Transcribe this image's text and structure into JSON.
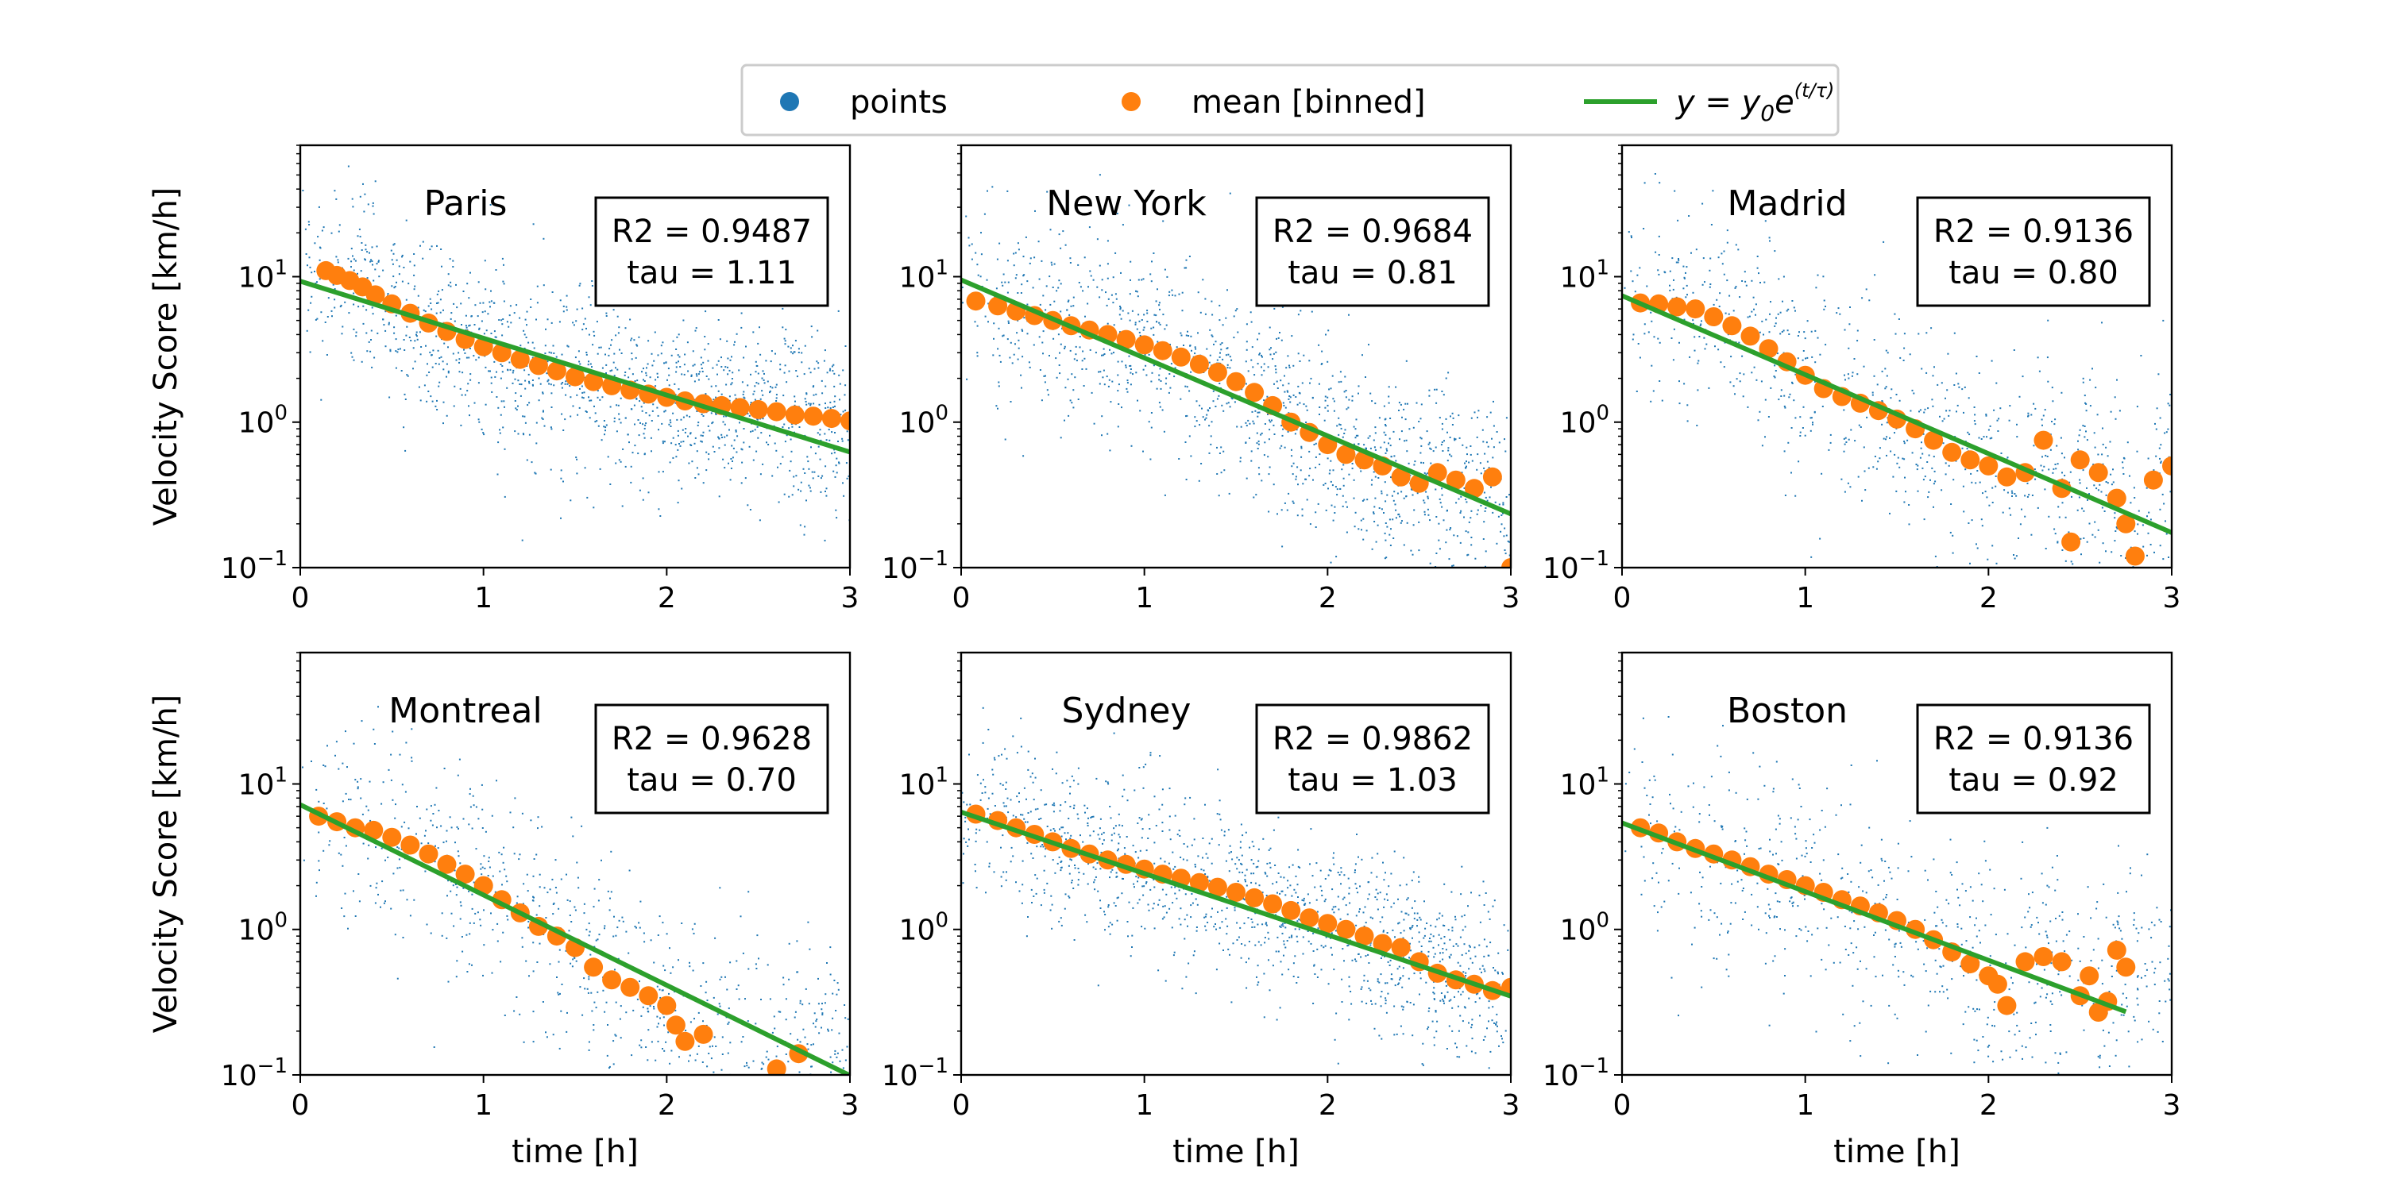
{
  "legend": {
    "placement": "top-center",
    "entries": [
      {
        "label": "points",
        "color": "#1f77b4",
        "marker": "dot"
      },
      {
        "label": "mean [binned]",
        "color": "#ff7f0e",
        "marker": "dot"
      },
      {
        "label_prefix": "y = y",
        "label_sub": "0",
        "label_e": "e",
        "label_sup": "(t/τ)",
        "color": "#2ca02c",
        "marker": "line"
      }
    ]
  },
  "colors": {
    "points": "#1f77b4",
    "mean": "#ff7f0e",
    "fit": "#2ca02c"
  },
  "chart_data": [
    {
      "type": "scatter",
      "title": "Paris",
      "row": 0,
      "col": 0,
      "xlabel": "",
      "ylabel": "Velocity Score [km/h]",
      "xlim": [
        0,
        3
      ],
      "ylim": [
        0.1,
        80
      ],
      "yscale": "log",
      "xticks": [
        "0",
        "1",
        "2",
        "3"
      ],
      "yticks": [
        {
          "base": "10",
          "exp": "1"
        },
        {
          "base": "10",
          "exp": "0"
        },
        {
          "base": "10",
          "exp": "−1"
        }
      ],
      "annotation": {
        "r2": "R2 = 0.9487",
        "tau": "tau = 1.11"
      },
      "fit": {
        "y0": 9.3,
        "tau": 1.11,
        "x_end": 3
      },
      "mean_binned": {
        "x": [
          0.14,
          0.2,
          0.27,
          0.34,
          0.41,
          0.5,
          0.6,
          0.7,
          0.8,
          0.9,
          1.0,
          1.1,
          1.2,
          1.3,
          1.4,
          1.5,
          1.6,
          1.7,
          1.8,
          1.9,
          2.0,
          2.1,
          2.2,
          2.3,
          2.4,
          2.5,
          2.6,
          2.7,
          2.8,
          2.9,
          3.0
        ],
        "y": [
          11,
          10.2,
          9.4,
          8.5,
          7.5,
          6.5,
          5.6,
          4.8,
          4.2,
          3.7,
          3.3,
          3.0,
          2.7,
          2.45,
          2.25,
          2.05,
          1.9,
          1.78,
          1.66,
          1.56,
          1.48,
          1.4,
          1.34,
          1.3,
          1.26,
          1.22,
          1.18,
          1.12,
          1.1,
          1.06,
          1.02
        ]
      },
      "scatter_spread": 0.32,
      "scatter_count": 1400
    },
    {
      "type": "scatter",
      "title": "New York",
      "row": 0,
      "col": 1,
      "xlabel": "",
      "ylabel": "",
      "xlim": [
        0,
        3
      ],
      "ylim": [
        0.1,
        80
      ],
      "yscale": "log",
      "xticks": [
        "0",
        "1",
        "2",
        "3"
      ],
      "yticks": [
        {
          "base": "10",
          "exp": "1"
        },
        {
          "base": "10",
          "exp": "0"
        },
        {
          "base": "10",
          "exp": "−1"
        }
      ],
      "annotation": {
        "r2": "R2 = 0.9684",
        "tau": "tau = 0.81"
      },
      "fit": {
        "y0": 9.5,
        "tau": 0.81,
        "x_end": 3
      },
      "mean_binned": {
        "x": [
          0.08,
          0.2,
          0.3,
          0.4,
          0.5,
          0.6,
          0.7,
          0.8,
          0.9,
          1.0,
          1.1,
          1.2,
          1.3,
          1.4,
          1.5,
          1.6,
          1.7,
          1.8,
          1.9,
          2.0,
          2.1,
          2.2,
          2.3,
          2.4,
          2.5,
          2.6,
          2.7,
          2.8,
          2.9,
          3.0
        ],
        "y": [
          6.8,
          6.3,
          5.8,
          5.4,
          5.0,
          4.6,
          4.3,
          4.0,
          3.7,
          3.4,
          3.1,
          2.8,
          2.5,
          2.2,
          1.9,
          1.6,
          1.3,
          1.0,
          0.85,
          0.7,
          0.6,
          0.55,
          0.5,
          0.42,
          0.38,
          0.45,
          0.4,
          0.35,
          0.42,
          0.1
        ]
      },
      "scatter_spread": 0.34,
      "scatter_count": 1300
    },
    {
      "type": "scatter",
      "title": "Madrid",
      "row": 0,
      "col": 2,
      "xlabel": "",
      "ylabel": "",
      "xlim": [
        0,
        3
      ],
      "ylim": [
        0.1,
        80
      ],
      "yscale": "log",
      "xticks": [
        "0",
        "1",
        "2",
        "3"
      ],
      "yticks": [
        {
          "base": "10",
          "exp": "1"
        },
        {
          "base": "10",
          "exp": "0"
        },
        {
          "base": "10",
          "exp": "−1"
        }
      ],
      "annotation": {
        "r2": "R2 = 0.9136",
        "tau": "tau = 0.80"
      },
      "fit": {
        "y0": 7.4,
        "tau": 0.8,
        "x_end": 3
      },
      "mean_binned": {
        "x": [
          0.1,
          0.2,
          0.3,
          0.4,
          0.5,
          0.6,
          0.7,
          0.8,
          0.9,
          1.0,
          1.1,
          1.2,
          1.3,
          1.4,
          1.5,
          1.6,
          1.7,
          1.8,
          1.9,
          2.0,
          2.1,
          2.2,
          2.3,
          2.4,
          2.45,
          2.5,
          2.6,
          2.7,
          2.75,
          2.8,
          2.9,
          3.0
        ],
        "y": [
          6.6,
          6.5,
          6.2,
          6.0,
          5.3,
          4.6,
          3.9,
          3.2,
          2.6,
          2.1,
          1.7,
          1.5,
          1.35,
          1.2,
          1.05,
          0.9,
          0.75,
          0.62,
          0.55,
          0.5,
          0.42,
          0.45,
          0.75,
          0.35,
          0.15,
          0.55,
          0.45,
          0.3,
          0.2,
          0.12,
          0.4,
          0.5
        ]
      },
      "scatter_spread": 0.38,
      "scatter_count": 900
    },
    {
      "type": "scatter",
      "title": "Montreal",
      "row": 1,
      "col": 0,
      "xlabel": "time [h]",
      "ylabel": "Velocity Score [km/h]",
      "xlim": [
        0,
        3
      ],
      "ylim": [
        0.1,
        80
      ],
      "yscale": "log",
      "xticks": [
        "0",
        "1",
        "2",
        "3"
      ],
      "yticks": [
        {
          "base": "10",
          "exp": "1"
        },
        {
          "base": "10",
          "exp": "0"
        },
        {
          "base": "10",
          "exp": "−1"
        }
      ],
      "annotation": {
        "r2": "R2 = 0.9628",
        "tau": "tau = 0.70"
      },
      "fit": {
        "y0": 7.2,
        "tau": 0.7,
        "x_end": 3
      },
      "mean_binned": {
        "x": [
          0.1,
          0.2,
          0.3,
          0.4,
          0.5,
          0.6,
          0.7,
          0.8,
          0.9,
          1.0,
          1.1,
          1.2,
          1.3,
          1.4,
          1.5,
          1.6,
          1.7,
          1.8,
          1.9,
          2.0,
          2.05,
          2.1,
          2.2,
          2.6,
          2.72
        ],
        "y": [
          6.0,
          5.5,
          5.0,
          4.8,
          4.3,
          3.8,
          3.3,
          2.8,
          2.4,
          2.0,
          1.6,
          1.3,
          1.05,
          0.9,
          0.75,
          0.55,
          0.45,
          0.4,
          0.35,
          0.3,
          0.22,
          0.17,
          0.19,
          0.11,
          0.14
        ]
      },
      "scatter_spread": 0.38,
      "scatter_count": 800
    },
    {
      "type": "scatter",
      "title": "Sydney",
      "row": 1,
      "col": 1,
      "xlabel": "time [h]",
      "ylabel": "",
      "xlim": [
        0,
        3
      ],
      "ylim": [
        0.1,
        80
      ],
      "yscale": "log",
      "xticks": [
        "0",
        "1",
        "2",
        "3"
      ],
      "yticks": [
        {
          "base": "10",
          "exp": "1"
        },
        {
          "base": "10",
          "exp": "0"
        },
        {
          "base": "10",
          "exp": "−1"
        }
      ],
      "annotation": {
        "r2": "R2 = 0.9862",
        "tau": "tau = 1.03"
      },
      "fit": {
        "y0": 6.4,
        "tau": 1.03,
        "x_end": 3
      },
      "mean_binned": {
        "x": [
          0.08,
          0.2,
          0.3,
          0.4,
          0.5,
          0.6,
          0.7,
          0.8,
          0.9,
          1.0,
          1.1,
          1.2,
          1.3,
          1.4,
          1.5,
          1.6,
          1.7,
          1.8,
          1.9,
          2.0,
          2.1,
          2.2,
          2.3,
          2.4,
          2.5,
          2.6,
          2.7,
          2.8,
          2.9,
          3.0
        ],
        "y": [
          6.2,
          5.6,
          5.0,
          4.5,
          4.0,
          3.6,
          3.3,
          3.0,
          2.8,
          2.6,
          2.4,
          2.25,
          2.1,
          1.95,
          1.8,
          1.65,
          1.5,
          1.35,
          1.2,
          1.1,
          1.0,
          0.9,
          0.8,
          0.75,
          0.6,
          0.5,
          0.45,
          0.42,
          0.38,
          0.4
        ]
      },
      "scatter_spread": 0.3,
      "scatter_count": 1300
    },
    {
      "type": "scatter",
      "title": "Boston",
      "row": 1,
      "col": 2,
      "xlabel": "time [h]",
      "ylabel": "",
      "xlim": [
        0,
        3
      ],
      "ylim": [
        0.1,
        80
      ],
      "yscale": "log",
      "xticks": [
        "0",
        "1",
        "2",
        "3"
      ],
      "yticks": [
        {
          "base": "10",
          "exp": "1"
        },
        {
          "base": "10",
          "exp": "0"
        },
        {
          "base": "10",
          "exp": "−1"
        }
      ],
      "annotation": {
        "r2": "R2 = 0.9136",
        "tau": "tau = 0.92"
      },
      "fit": {
        "y0": 5.4,
        "tau": 0.92,
        "x_end": 2.75
      },
      "mean_binned": {
        "x": [
          0.1,
          0.2,
          0.3,
          0.4,
          0.5,
          0.6,
          0.7,
          0.8,
          0.9,
          1.0,
          1.1,
          1.2,
          1.3,
          1.4,
          1.5,
          1.6,
          1.7,
          1.8,
          1.9,
          2.0,
          2.05,
          2.1,
          2.2,
          2.3,
          2.4,
          2.5,
          2.55,
          2.6,
          2.65,
          2.7,
          2.75
        ],
        "y": [
          5.0,
          4.6,
          4.0,
          3.6,
          3.3,
          3.0,
          2.7,
          2.4,
          2.2,
          2.0,
          1.8,
          1.6,
          1.45,
          1.3,
          1.15,
          1.0,
          0.85,
          0.7,
          0.58,
          0.48,
          0.42,
          0.3,
          0.6,
          0.65,
          0.6,
          0.35,
          0.48,
          0.27,
          0.32,
          0.72,
          0.55
        ]
      },
      "scatter_spread": 0.38,
      "scatter_count": 700
    }
  ]
}
